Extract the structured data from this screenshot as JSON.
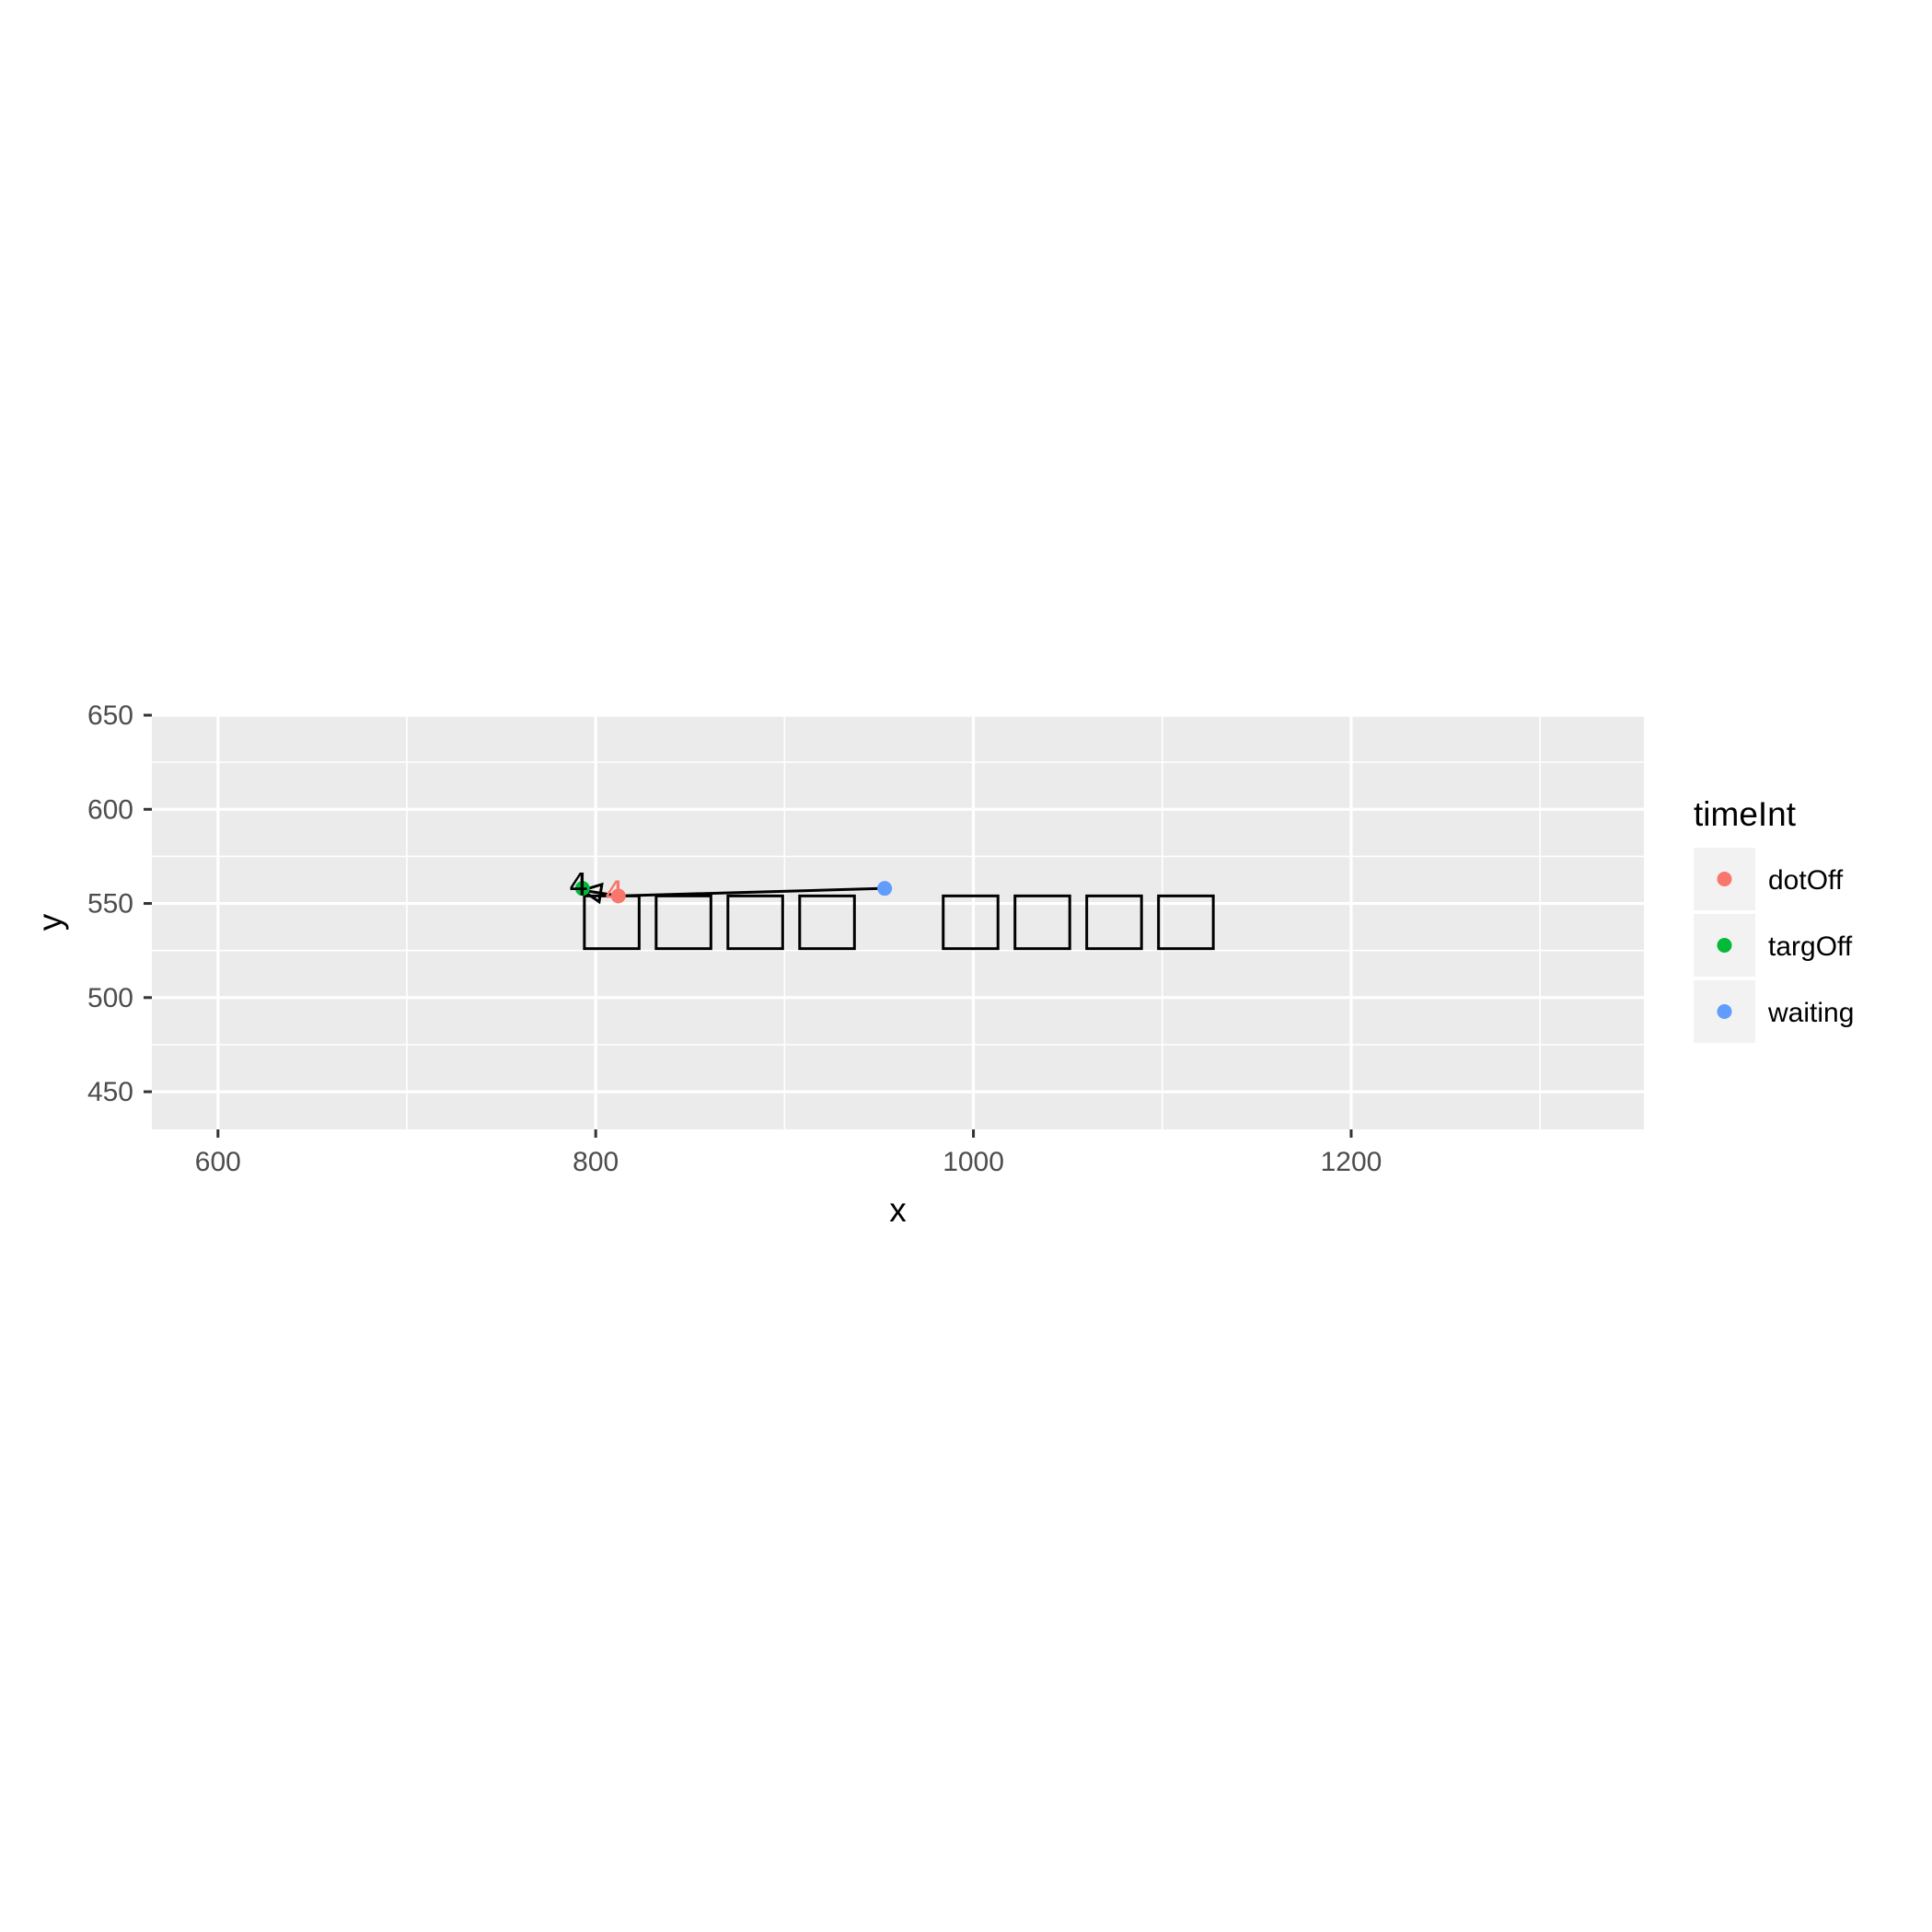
{
  "chart_data": {
    "type": "scatter",
    "xlabel": "x",
    "ylabel": "y",
    "xlim": [
      565,
      1355
    ],
    "ylim": [
      430,
      650
    ],
    "x_ticks": [
      600,
      800,
      1000,
      1200
    ],
    "y_ticks": [
      450,
      500,
      550,
      600,
      650
    ],
    "grid": true,
    "legend": {
      "title": "timeInt",
      "placement": "right",
      "entries": [
        {
          "label": "dotOff",
          "color": "#F8766D"
        },
        {
          "label": "targOff",
          "color": "#00BA38"
        },
        {
          "label": "waiting",
          "color": "#619CFF"
        }
      ]
    },
    "series": [
      {
        "name": "dotOff",
        "color": "#F8766D",
        "points": [
          {
            "x": 812,
            "y": 554
          }
        ]
      },
      {
        "name": "targOff",
        "color": "#00BA38",
        "points": [
          {
            "x": 793,
            "y": 558
          }
        ]
      },
      {
        "name": "waiting",
        "color": "#619CFF",
        "points": [
          {
            "x": 953,
            "y": 558
          }
        ]
      }
    ],
    "path": [
      {
        "x": 953,
        "y": 558
      },
      {
        "x": 812,
        "y": 554
      },
      {
        "x": 793,
        "y": 557
      }
    ],
    "annotations": [
      {
        "label": "4",
        "x": 791,
        "y": 560,
        "color": "#000000"
      },
      {
        "label": "4",
        "x": 810,
        "y": 556,
        "color": "#F8766D"
      }
    ],
    "boxes": [
      {
        "xmin": 794,
        "xmax": 823,
        "ymin": 526,
        "ymax": 554
      },
      {
        "xmin": 832,
        "xmax": 861,
        "ymin": 526,
        "ymax": 554
      },
      {
        "xmin": 870,
        "xmax": 899,
        "ymin": 526,
        "ymax": 554
      },
      {
        "xmin": 908,
        "xmax": 937,
        "ymin": 526,
        "ymax": 554
      },
      {
        "xmin": 984,
        "xmax": 1013,
        "ymin": 526,
        "ymax": 554
      },
      {
        "xmin": 1022,
        "xmax": 1051,
        "ymin": 526,
        "ymax": 554
      },
      {
        "xmin": 1060,
        "xmax": 1089,
        "ymin": 526,
        "ymax": 554
      },
      {
        "xmin": 1098,
        "xmax": 1127,
        "ymin": 526,
        "ymax": 554
      }
    ]
  }
}
